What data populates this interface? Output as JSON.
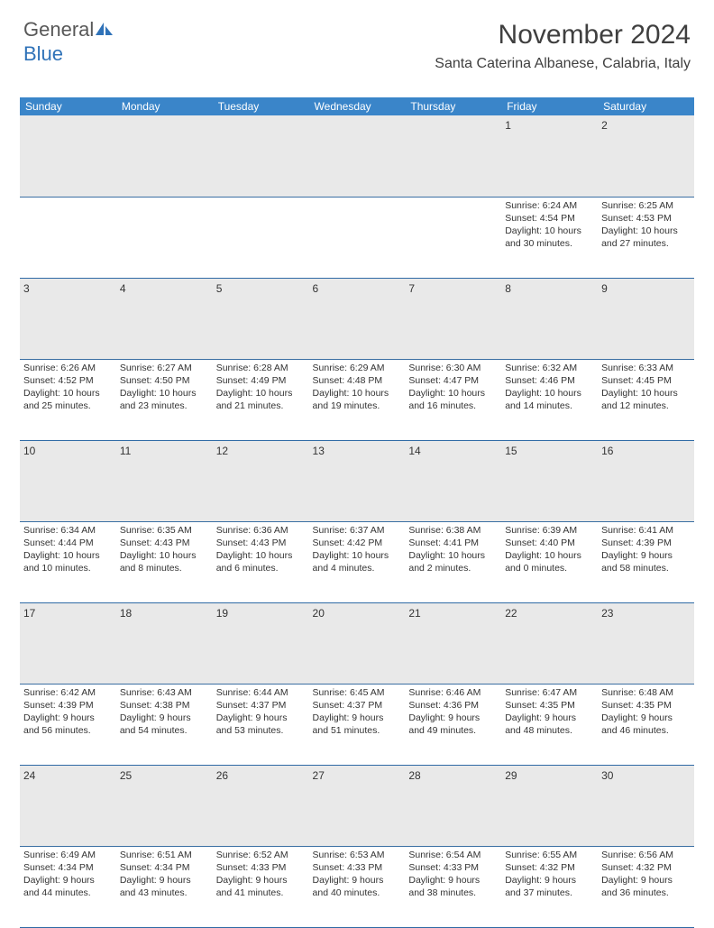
{
  "logo": {
    "text_gray": "General",
    "text_blue": "Blue"
  },
  "header": {
    "month_title": "November 2024",
    "location": "Santa Caterina Albanese, Calabria, Italy"
  },
  "colors": {
    "header_bg": "#3a85c9",
    "header_text": "#ffffff",
    "daynum_bg": "#e9e9e9",
    "cell_border": "#2f6aa5",
    "body_text": "#333333",
    "title_text": "#3f3f3f",
    "logo_gray": "#585858",
    "logo_blue": "#2f72b8"
  },
  "weekdays": [
    "Sunday",
    "Monday",
    "Tuesday",
    "Wednesday",
    "Thursday",
    "Friday",
    "Saturday"
  ],
  "weeks": [
    [
      {
        "n": "",
        "sr": "",
        "ss": "",
        "dl": ""
      },
      {
        "n": "",
        "sr": "",
        "ss": "",
        "dl": ""
      },
      {
        "n": "",
        "sr": "",
        "ss": "",
        "dl": ""
      },
      {
        "n": "",
        "sr": "",
        "ss": "",
        "dl": ""
      },
      {
        "n": "",
        "sr": "",
        "ss": "",
        "dl": ""
      },
      {
        "n": "1",
        "sr": "Sunrise: 6:24 AM",
        "ss": "Sunset: 4:54 PM",
        "dl": "Daylight: 10 hours and 30 minutes."
      },
      {
        "n": "2",
        "sr": "Sunrise: 6:25 AM",
        "ss": "Sunset: 4:53 PM",
        "dl": "Daylight: 10 hours and 27 minutes."
      }
    ],
    [
      {
        "n": "3",
        "sr": "Sunrise: 6:26 AM",
        "ss": "Sunset: 4:52 PM",
        "dl": "Daylight: 10 hours and 25 minutes."
      },
      {
        "n": "4",
        "sr": "Sunrise: 6:27 AM",
        "ss": "Sunset: 4:50 PM",
        "dl": "Daylight: 10 hours and 23 minutes."
      },
      {
        "n": "5",
        "sr": "Sunrise: 6:28 AM",
        "ss": "Sunset: 4:49 PM",
        "dl": "Daylight: 10 hours and 21 minutes."
      },
      {
        "n": "6",
        "sr": "Sunrise: 6:29 AM",
        "ss": "Sunset: 4:48 PM",
        "dl": "Daylight: 10 hours and 19 minutes."
      },
      {
        "n": "7",
        "sr": "Sunrise: 6:30 AM",
        "ss": "Sunset: 4:47 PM",
        "dl": "Daylight: 10 hours and 16 minutes."
      },
      {
        "n": "8",
        "sr": "Sunrise: 6:32 AM",
        "ss": "Sunset: 4:46 PM",
        "dl": "Daylight: 10 hours and 14 minutes."
      },
      {
        "n": "9",
        "sr": "Sunrise: 6:33 AM",
        "ss": "Sunset: 4:45 PM",
        "dl": "Daylight: 10 hours and 12 minutes."
      }
    ],
    [
      {
        "n": "10",
        "sr": "Sunrise: 6:34 AM",
        "ss": "Sunset: 4:44 PM",
        "dl": "Daylight: 10 hours and 10 minutes."
      },
      {
        "n": "11",
        "sr": "Sunrise: 6:35 AM",
        "ss": "Sunset: 4:43 PM",
        "dl": "Daylight: 10 hours and 8 minutes."
      },
      {
        "n": "12",
        "sr": "Sunrise: 6:36 AM",
        "ss": "Sunset: 4:43 PM",
        "dl": "Daylight: 10 hours and 6 minutes."
      },
      {
        "n": "13",
        "sr": "Sunrise: 6:37 AM",
        "ss": "Sunset: 4:42 PM",
        "dl": "Daylight: 10 hours and 4 minutes."
      },
      {
        "n": "14",
        "sr": "Sunrise: 6:38 AM",
        "ss": "Sunset: 4:41 PM",
        "dl": "Daylight: 10 hours and 2 minutes."
      },
      {
        "n": "15",
        "sr": "Sunrise: 6:39 AM",
        "ss": "Sunset: 4:40 PM",
        "dl": "Daylight: 10 hours and 0 minutes."
      },
      {
        "n": "16",
        "sr": "Sunrise: 6:41 AM",
        "ss": "Sunset: 4:39 PM",
        "dl": "Daylight: 9 hours and 58 minutes."
      }
    ],
    [
      {
        "n": "17",
        "sr": "Sunrise: 6:42 AM",
        "ss": "Sunset: 4:39 PM",
        "dl": "Daylight: 9 hours and 56 minutes."
      },
      {
        "n": "18",
        "sr": "Sunrise: 6:43 AM",
        "ss": "Sunset: 4:38 PM",
        "dl": "Daylight: 9 hours and 54 minutes."
      },
      {
        "n": "19",
        "sr": "Sunrise: 6:44 AM",
        "ss": "Sunset: 4:37 PM",
        "dl": "Daylight: 9 hours and 53 minutes."
      },
      {
        "n": "20",
        "sr": "Sunrise: 6:45 AM",
        "ss": "Sunset: 4:37 PM",
        "dl": "Daylight: 9 hours and 51 minutes."
      },
      {
        "n": "21",
        "sr": "Sunrise: 6:46 AM",
        "ss": "Sunset: 4:36 PM",
        "dl": "Daylight: 9 hours and 49 minutes."
      },
      {
        "n": "22",
        "sr": "Sunrise: 6:47 AM",
        "ss": "Sunset: 4:35 PM",
        "dl": "Daylight: 9 hours and 48 minutes."
      },
      {
        "n": "23",
        "sr": "Sunrise: 6:48 AM",
        "ss": "Sunset: 4:35 PM",
        "dl": "Daylight: 9 hours and 46 minutes."
      }
    ],
    [
      {
        "n": "24",
        "sr": "Sunrise: 6:49 AM",
        "ss": "Sunset: 4:34 PM",
        "dl": "Daylight: 9 hours and 44 minutes."
      },
      {
        "n": "25",
        "sr": "Sunrise: 6:51 AM",
        "ss": "Sunset: 4:34 PM",
        "dl": "Daylight: 9 hours and 43 minutes."
      },
      {
        "n": "26",
        "sr": "Sunrise: 6:52 AM",
        "ss": "Sunset: 4:33 PM",
        "dl": "Daylight: 9 hours and 41 minutes."
      },
      {
        "n": "27",
        "sr": "Sunrise: 6:53 AM",
        "ss": "Sunset: 4:33 PM",
        "dl": "Daylight: 9 hours and 40 minutes."
      },
      {
        "n": "28",
        "sr": "Sunrise: 6:54 AM",
        "ss": "Sunset: 4:33 PM",
        "dl": "Daylight: 9 hours and 38 minutes."
      },
      {
        "n": "29",
        "sr": "Sunrise: 6:55 AM",
        "ss": "Sunset: 4:32 PM",
        "dl": "Daylight: 9 hours and 37 minutes."
      },
      {
        "n": "30",
        "sr": "Sunrise: 6:56 AM",
        "ss": "Sunset: 4:32 PM",
        "dl": "Daylight: 9 hours and 36 minutes."
      }
    ]
  ]
}
